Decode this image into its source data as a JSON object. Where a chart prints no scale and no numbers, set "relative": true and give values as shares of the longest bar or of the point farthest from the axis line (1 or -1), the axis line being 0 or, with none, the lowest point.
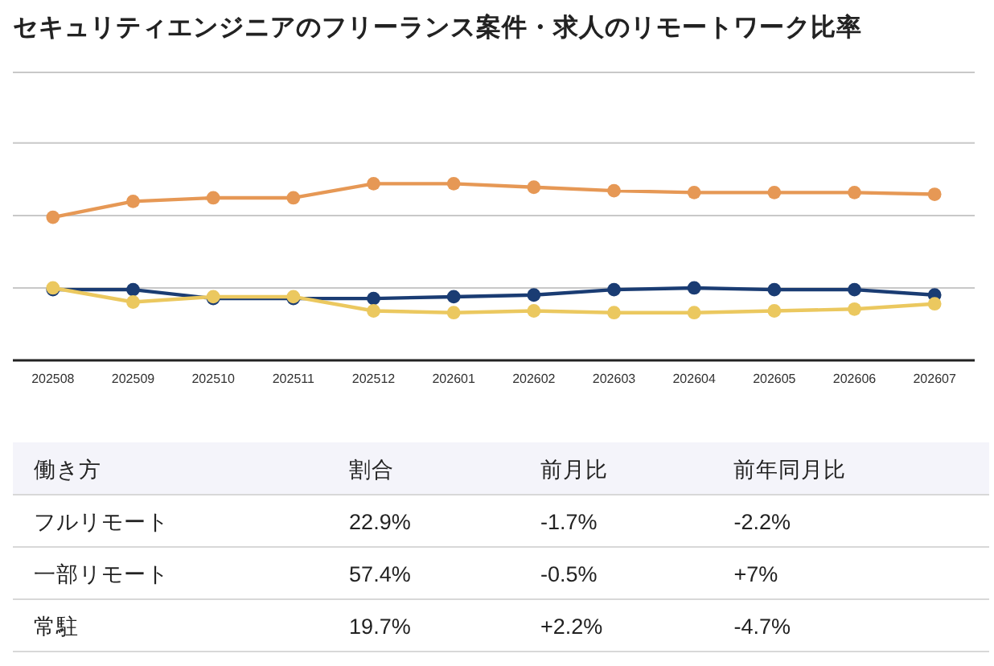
{
  "chart_data": [
    {
      "type": "line",
      "title": "セキュリティエンジニアのフリーランス案件・求人のリモートワーク比率",
      "categories": [
        "202508",
        "202509",
        "202510",
        "202511",
        "202512",
        "202601",
        "202602",
        "202603",
        "202604",
        "202605",
        "202606",
        "202607"
      ],
      "relative": true,
      "marker": "circle",
      "ref_lines": [
        {
          "axis": "y",
          "value": 0.41,
          "color": "#c8c8c8"
        },
        {
          "axis": "y",
          "value": 0.82,
          "color": "#c8c8c8"
        },
        {
          "axis": "y",
          "value": 1.23,
          "color": "#c8c8c8"
        },
        {
          "axis": "y",
          "value": 1.63,
          "color": "#c8c8c8"
        }
      ],
      "series": [
        {
          "color": "#e69855",
          "values": [
            0.81,
            0.9,
            0.92,
            0.92,
            1,
            1,
            0.98,
            0.96,
            0.95,
            0.95,
            0.95,
            0.94
          ]
        },
        {
          "color": "#1a3c73",
          "values": [
            0.4,
            0.4,
            0.35,
            0.35,
            0.35,
            0.36,
            0.37,
            0.4,
            0.41,
            0.4,
            0.4,
            0.37
          ]
        },
        {
          "color": "#ebc85f",
          "values": [
            0.41,
            0.33,
            0.36,
            0.36,
            0.28,
            0.27,
            0.28,
            0.27,
            0.27,
            0.28,
            0.29,
            0.32
          ]
        }
      ]
    },
    {
      "type": "other",
      "categories": [
        "働き方",
        "割合",
        "前月比",
        "前年同月比"
      ],
      "y_categories": [
        "フルリモート",
        "一部リモート",
        "常駐"
      ],
      "cell_labels": [
        [
          "22.9%",
          "-1.7%",
          "-2.2%"
        ],
        [
          "57.4%",
          "-0.5%",
          "+7%"
        ],
        [
          "19.7%",
          "+2.2%",
          "-4.7%"
        ]
      ]
    }
  ]
}
